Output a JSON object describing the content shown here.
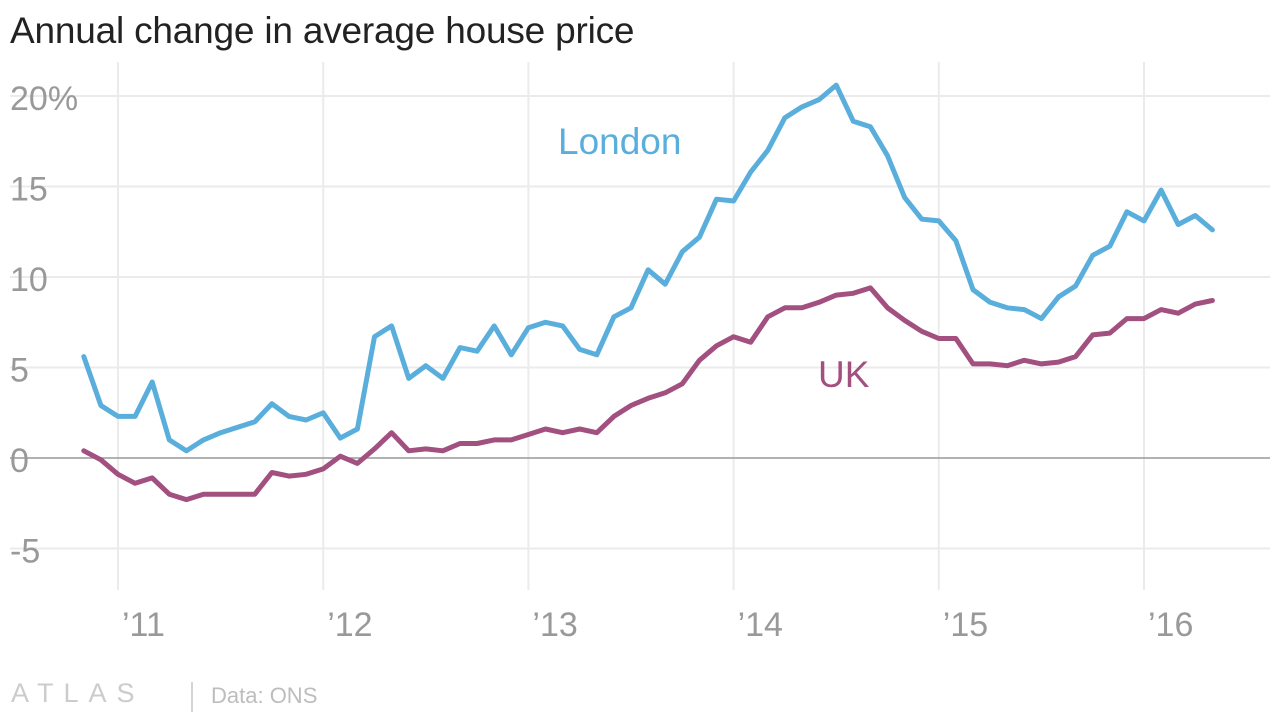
{
  "title": "Annual change in average house price",
  "footer": {
    "brand": "ATLAS",
    "source": "Data: ONS"
  },
  "colors": {
    "london": "#5aaedc",
    "uk": "#a2507f",
    "grid": "#ebebeb",
    "zero_line": "#999999",
    "tick_text": "#999999"
  },
  "chart_data": {
    "type": "line",
    "title": "Annual change in average house price",
    "xlabel": "",
    "ylabel": "",
    "grid": true,
    "x_range": [
      "2010-11",
      "2016-05"
    ],
    "ylim": [
      -6,
      21
    ],
    "y_ticks": [
      -5,
      0,
      5,
      10,
      15,
      20
    ],
    "y_tick_labels": [
      "-5",
      "0",
      "5",
      "10",
      "15",
      "20%"
    ],
    "x_ticks": [
      "2011-01",
      "2012-01",
      "2013-01",
      "2014-01",
      "2015-01",
      "2016-01"
    ],
    "x_tick_labels": [
      "’11",
      "’12",
      "’13",
      "’14",
      "’15",
      "’16"
    ],
    "x": [
      "2010-11",
      "2010-12",
      "2011-01",
      "2011-02",
      "2011-03",
      "2011-04",
      "2011-05",
      "2011-06",
      "2011-07",
      "2011-08",
      "2011-09",
      "2011-10",
      "2011-11",
      "2011-12",
      "2012-01",
      "2012-02",
      "2012-03",
      "2012-04",
      "2012-05",
      "2012-06",
      "2012-07",
      "2012-08",
      "2012-09",
      "2012-10",
      "2012-11",
      "2012-12",
      "2013-01",
      "2013-02",
      "2013-03",
      "2013-04",
      "2013-05",
      "2013-06",
      "2013-07",
      "2013-08",
      "2013-09",
      "2013-10",
      "2013-11",
      "2013-12",
      "2014-01",
      "2014-02",
      "2014-03",
      "2014-04",
      "2014-05",
      "2014-06",
      "2014-07",
      "2014-08",
      "2014-09",
      "2014-10",
      "2014-11",
      "2014-12",
      "2015-01",
      "2015-02",
      "2015-03",
      "2015-04",
      "2015-05",
      "2015-06",
      "2015-07",
      "2015-08",
      "2015-09",
      "2015-10",
      "2015-11",
      "2015-12",
      "2016-01",
      "2016-02",
      "2016-03",
      "2016-04",
      "2016-05"
    ],
    "series": [
      {
        "name": "London",
        "values": [
          5.6,
          2.9,
          2.3,
          2.3,
          4.2,
          1.0,
          0.4,
          1.0,
          1.4,
          1.7,
          2.0,
          3.0,
          2.3,
          2.1,
          2.5,
          1.1,
          1.6,
          6.7,
          7.3,
          4.4,
          5.1,
          4.4,
          6.1,
          5.9,
          7.3,
          5.7,
          7.2,
          7.5,
          7.3,
          6.0,
          5.7,
          7.8,
          8.3,
          10.4,
          9.6,
          11.4,
          12.2,
          14.3,
          14.2,
          15.8,
          17.0,
          18.8,
          19.4,
          19.8,
          20.6,
          18.6,
          18.3,
          16.7,
          14.4,
          13.2,
          13.1,
          12.0,
          9.3,
          8.6,
          8.3,
          8.2,
          7.7,
          8.9,
          9.5,
          11.2,
          11.7,
          13.6,
          13.1,
          14.8,
          12.9,
          13.4,
          12.6
        ]
      },
      {
        "name": "UK",
        "values": [
          0.4,
          -0.1,
          -0.9,
          -1.4,
          -1.1,
          -2.0,
          -2.3,
          -2.0,
          -2.0,
          -2.0,
          -2.0,
          -0.8,
          -1.0,
          -0.9,
          -0.6,
          0.1,
          -0.3,
          0.5,
          1.4,
          0.4,
          0.5,
          0.4,
          0.8,
          0.8,
          1.0,
          1.0,
          1.3,
          1.6,
          1.4,
          1.6,
          1.4,
          2.3,
          2.9,
          3.3,
          3.6,
          4.1,
          5.4,
          6.2,
          6.7,
          6.4,
          7.8,
          8.3,
          8.3,
          8.6,
          9.0,
          9.1,
          9.4,
          8.3,
          7.6,
          7.0,
          6.6,
          6.6,
          5.2,
          5.2,
          5.1,
          5.4,
          5.2,
          5.3,
          5.6,
          6.8,
          6.9,
          7.7,
          7.7,
          8.2,
          8.0,
          8.5,
          8.7
        ]
      }
    ],
    "annotations": [
      {
        "text": "London",
        "series": "London"
      },
      {
        "text": "UK",
        "series": "UK"
      }
    ]
  }
}
